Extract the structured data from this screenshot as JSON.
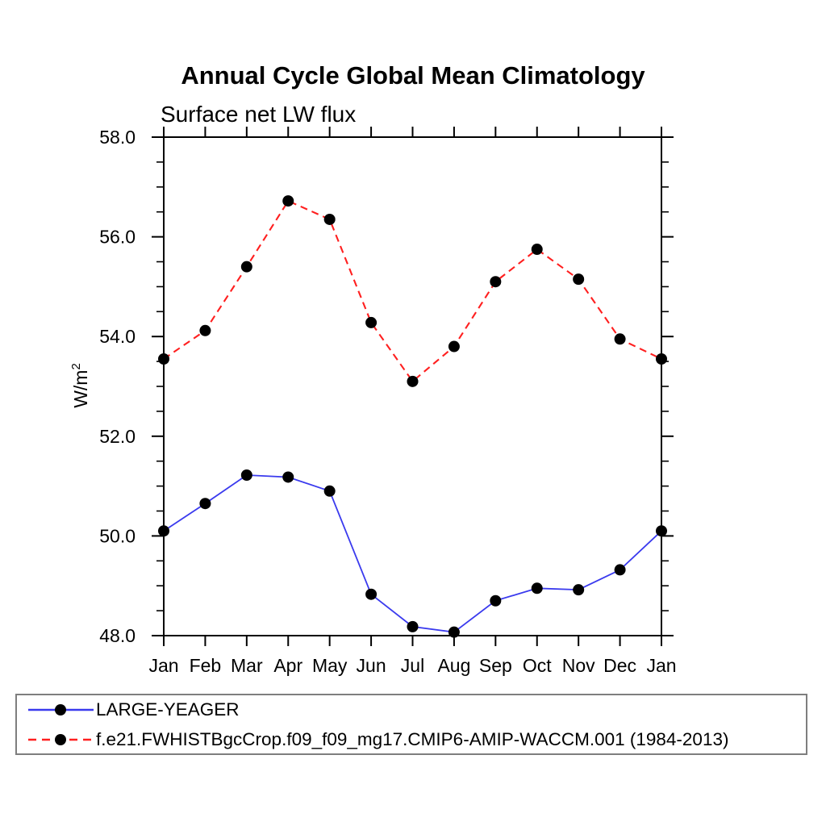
{
  "title": "Annual Cycle Global Mean Climatology",
  "subtitle": "Surface net LW flux",
  "ylabel": {
    "base": "W/m",
    "sup": "2"
  },
  "chart_data": {
    "type": "line",
    "categories": [
      "Jan",
      "Feb",
      "Mar",
      "Apr",
      "May",
      "Jun",
      "Jul",
      "Aug",
      "Sep",
      "Oct",
      "Nov",
      "Dec",
      "Jan"
    ],
    "xlabel": "",
    "ylabel": "W/m2",
    "ylim": [
      48.0,
      58.0
    ],
    "yticks": {
      "values": [
        48,
        50,
        52,
        54,
        56,
        58
      ],
      "labels": [
        "48.0",
        "50.0",
        "52.0",
        "54.0",
        "56.0",
        "58.0"
      ],
      "minor_step": 0.5
    },
    "grid": false,
    "legend_position": "bottom",
    "marker": {
      "shape": "circle",
      "color": "#000000",
      "radius": 7
    },
    "series": [
      {
        "name": "LARGE-YEAGER",
        "color": "#3a3aee",
        "style": "solid",
        "values": [
          50.1,
          50.65,
          51.22,
          51.18,
          50.9,
          48.83,
          48.18,
          48.07,
          48.7,
          48.95,
          48.92,
          49.32,
          50.1
        ]
      },
      {
        "name": "f.e21.FWHISTBgcCrop.f09_f09_mg17.CMIP6-AMIP-WACCM.001 (1984-2013)",
        "color": "#ff1f1f",
        "style": "dashed",
        "values": [
          53.55,
          54.12,
          55.4,
          56.72,
          56.35,
          54.28,
          53.1,
          53.8,
          55.1,
          55.75,
          55.15,
          53.95,
          53.55
        ]
      }
    ]
  },
  "colors": {
    "axis": "#000000",
    "legend_border": "#7e7e7e",
    "background": "#ffffff"
  }
}
